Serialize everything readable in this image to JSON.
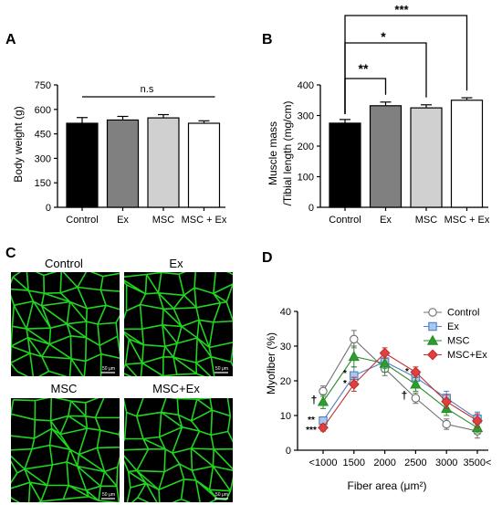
{
  "chart_data": [
    {
      "panel": "A",
      "type": "bar",
      "categories": [
        "Control",
        "Ex",
        "MSC",
        "MSC + Ex"
      ],
      "values": [
        515,
        535,
        548,
        515
      ],
      "errors": [
        35,
        22,
        20,
        15
      ],
      "colors": [
        "#000000",
        "#808080",
        "#d0d0d0",
        "#ffffff"
      ],
      "ylabel": "Body weight (g)",
      "ylim": [
        0,
        750
      ],
      "yticks": [
        "0",
        "150",
        "300",
        "450",
        "600",
        "750"
      ],
      "annotation": "n.s"
    },
    {
      "panel": "B",
      "type": "bar",
      "categories": [
        "Control",
        "Ex",
        "MSC",
        "MSC + Ex"
      ],
      "values": [
        275,
        332,
        325,
        350
      ],
      "errors": [
        12,
        12,
        10,
        8
      ],
      "colors": [
        "#000000",
        "#808080",
        "#d0d0d0",
        "#ffffff"
      ],
      "ylabel_line1": "Muscle mass",
      "ylabel_line2": "/Tibial length (mg/cm)",
      "ylim": [
        0,
        400
      ],
      "yticks": [
        "0",
        "100",
        "200",
        "300",
        "400"
      ],
      "significance": [
        "**",
        "*",
        "***"
      ]
    },
    {
      "panel": "D",
      "type": "line",
      "categories": [
        "<1000",
        "1500",
        "2000",
        "2500",
        "3000",
        "3500<"
      ],
      "ylabel": "Myofiber (%)",
      "xlabel": "Fiber area (μm²)",
      "ylim": [
        0,
        40
      ],
      "yticks": [
        "0",
        "10",
        "20",
        "30",
        "40"
      ],
      "legend_position": "top-right",
      "series": [
        {
          "name": "Control",
          "marker": "circle",
          "color": "#707070",
          "fill": "#ffffff",
          "values": [
            17,
            32,
            23.5,
            15,
            7.5,
            5.5
          ],
          "errors": [
            1.5,
            2.5,
            2,
            1.5,
            1.5,
            2
          ]
        },
        {
          "name": "Ex",
          "marker": "square",
          "color": "#5080c0",
          "fill": "#a8c8f0",
          "values": [
            8.5,
            21.5,
            25.5,
            21,
            15,
            9
          ],
          "errors": [
            1,
            2.5,
            2,
            1.5,
            2,
            2
          ]
        },
        {
          "name": "MSC",
          "marker": "triangle",
          "color": "#2a8a2a",
          "fill": "#2aa02a",
          "values": [
            14,
            27,
            25,
            19,
            12,
            6.5
          ],
          "errors": [
            2,
            3,
            2.5,
            2,
            2,
            1.5
          ]
        },
        {
          "name": "MSC+Ex",
          "marker": "diamond",
          "color": "#c03030",
          "fill": "#e04040",
          "values": [
            6.5,
            19,
            28,
            22.5,
            14,
            8.5
          ],
          "errors": [
            1,
            2,
            1.5,
            1.5,
            2,
            2
          ]
        }
      ],
      "annotations": [
        "†",
        "**",
        "***",
        "*",
        "*",
        "*",
        "†"
      ]
    }
  ],
  "panel_labels": [
    "A",
    "B",
    "C",
    "D"
  ],
  "micrographs": {
    "labels": [
      "Control",
      "Ex",
      "MSC",
      "MSC+Ex"
    ],
    "scale_bar": "50 μm",
    "stain_color": "#22e022"
  }
}
